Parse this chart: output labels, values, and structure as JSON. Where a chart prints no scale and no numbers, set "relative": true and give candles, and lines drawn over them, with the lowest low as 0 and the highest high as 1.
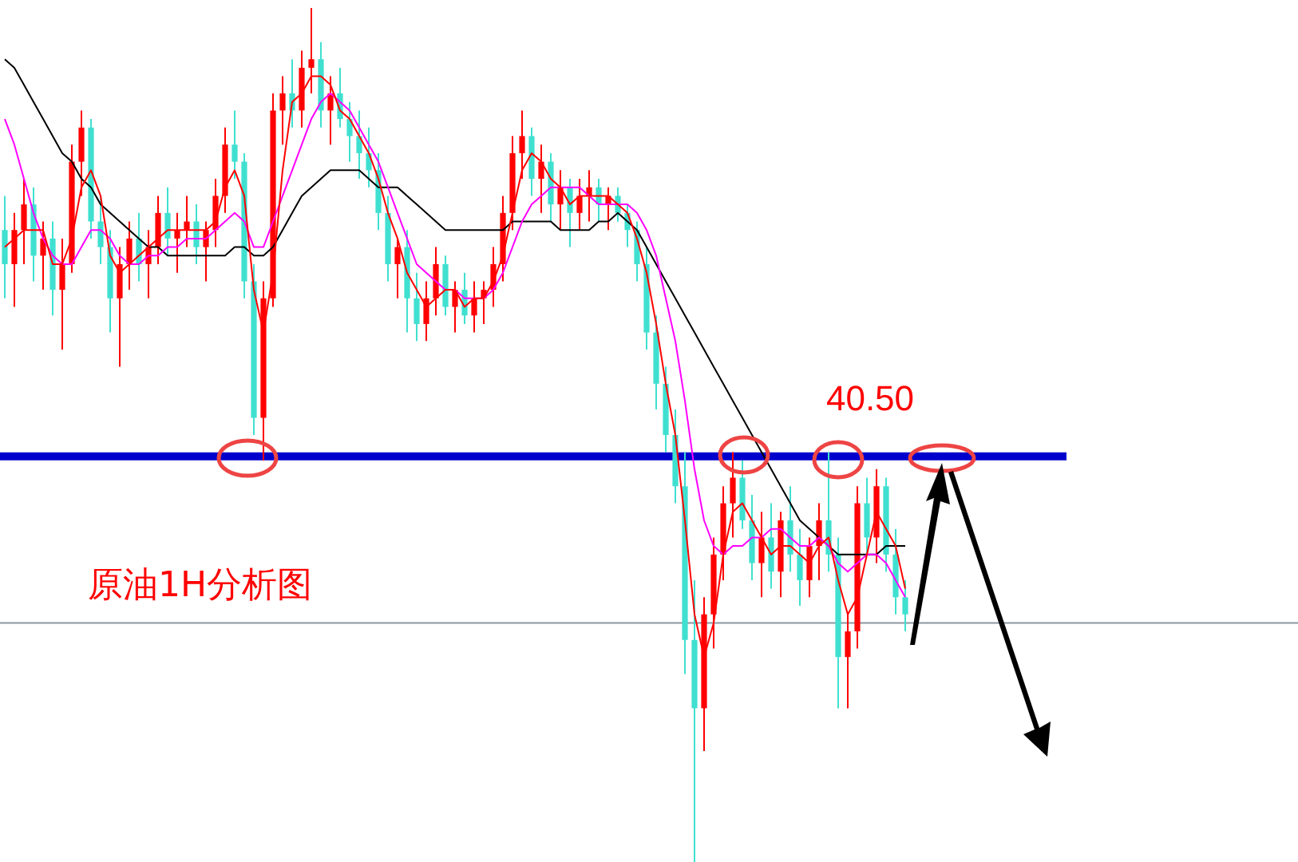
{
  "chart_data": {
    "type": "candlestick",
    "relative": true,
    "legend": false,
    "categories": [
      null,
      null,
      null,
      null,
      null,
      null,
      null,
      null,
      null,
      null,
      null,
      null,
      null,
      null,
      null,
      null,
      null,
      null,
      null,
      null,
      null,
      null,
      null,
      null,
      null,
      null,
      null,
      null,
      null,
      null,
      null,
      null,
      null,
      null,
      null,
      null,
      null,
      null,
      null,
      null,
      null,
      null,
      null,
      null,
      null,
      null,
      null,
      null,
      null,
      null,
      null,
      null,
      null,
      null,
      null,
      null,
      null,
      null,
      null,
      null,
      null,
      null,
      null,
      null,
      null,
      null,
      null,
      null,
      null,
      null,
      null,
      null,
      null,
      null,
      null,
      null,
      null,
      null,
      null,
      null,
      null,
      null,
      null,
      null,
      null,
      null,
      null,
      null,
      null,
      null,
      null,
      null,
      null,
      null,
      null
    ],
    "ohlc": [
      [
        0.74,
        0.78,
        0.66,
        0.7
      ],
      [
        0.7,
        0.76,
        0.65,
        0.74
      ],
      [
        0.74,
        0.8,
        0.7,
        0.77
      ],
      [
        0.77,
        0.79,
        0.68,
        0.71
      ],
      [
        0.71,
        0.75,
        0.67,
        0.73
      ],
      [
        0.73,
        0.75,
        0.64,
        0.67
      ],
      [
        0.67,
        0.73,
        0.6,
        0.7
      ],
      [
        0.7,
        0.84,
        0.69,
        0.82
      ],
      [
        0.82,
        0.88,
        0.78,
        0.86
      ],
      [
        0.86,
        0.87,
        0.73,
        0.75
      ],
      [
        0.75,
        0.78,
        0.7,
        0.72
      ],
      [
        0.72,
        0.74,
        0.62,
        0.66
      ],
      [
        0.66,
        0.72,
        0.58,
        0.7
      ],
      [
        0.7,
        0.75,
        0.67,
        0.73
      ],
      [
        0.73,
        0.76,
        0.68,
        0.7
      ],
      [
        0.7,
        0.74,
        0.66,
        0.72
      ],
      [
        0.72,
        0.78,
        0.7,
        0.76
      ],
      [
        0.76,
        0.79,
        0.71,
        0.73
      ],
      [
        0.73,
        0.76,
        0.69,
        0.74
      ],
      [
        0.74,
        0.78,
        0.72,
        0.75
      ],
      [
        0.75,
        0.77,
        0.7,
        0.72
      ],
      [
        0.72,
        0.75,
        0.68,
        0.74
      ],
      [
        0.74,
        0.8,
        0.72,
        0.78
      ],
      [
        0.78,
        0.86,
        0.76,
        0.84
      ],
      [
        0.84,
        0.88,
        0.8,
        0.82
      ],
      [
        0.82,
        0.83,
        0.66,
        0.68
      ],
      [
        0.68,
        0.7,
        0.5,
        0.52
      ],
      [
        0.52,
        0.68,
        0.47,
        0.66
      ],
      [
        0.66,
        0.9,
        0.65,
        0.88
      ],
      [
        0.88,
        0.92,
        0.84,
        0.9
      ],
      [
        0.9,
        0.94,
        0.86,
        0.88
      ],
      [
        0.88,
        0.95,
        0.86,
        0.93
      ],
      [
        0.93,
        1.0,
        0.9,
        0.94
      ],
      [
        0.94,
        0.96,
        0.86,
        0.88
      ],
      [
        0.88,
        0.92,
        0.84,
        0.9
      ],
      [
        0.9,
        0.93,
        0.86,
        0.87
      ],
      [
        0.87,
        0.89,
        0.82,
        0.85
      ],
      [
        0.85,
        0.88,
        0.8,
        0.83
      ],
      [
        0.83,
        0.86,
        0.79,
        0.81
      ],
      [
        0.81,
        0.83,
        0.74,
        0.76
      ],
      [
        0.76,
        0.78,
        0.68,
        0.7
      ],
      [
        0.7,
        0.73,
        0.66,
        0.72
      ],
      [
        0.72,
        0.74,
        0.62,
        0.66
      ],
      [
        0.66,
        0.69,
        0.61,
        0.63
      ],
      [
        0.63,
        0.68,
        0.61,
        0.66
      ],
      [
        0.66,
        0.72,
        0.64,
        0.7
      ],
      [
        0.7,
        0.71,
        0.64,
        0.65
      ],
      [
        0.65,
        0.68,
        0.62,
        0.67
      ],
      [
        0.67,
        0.69,
        0.63,
        0.64
      ],
      [
        0.64,
        0.68,
        0.62,
        0.66
      ],
      [
        0.66,
        0.68,
        0.63,
        0.67
      ],
      [
        0.67,
        0.72,
        0.65,
        0.7
      ],
      [
        0.7,
        0.78,
        0.68,
        0.76
      ],
      [
        0.76,
        0.85,
        0.74,
        0.83
      ],
      [
        0.83,
        0.88,
        0.8,
        0.85
      ],
      [
        0.85,
        0.86,
        0.78,
        0.8
      ],
      [
        0.8,
        0.84,
        0.76,
        0.82
      ],
      [
        0.82,
        0.83,
        0.75,
        0.77
      ],
      [
        0.77,
        0.81,
        0.74,
        0.79
      ],
      [
        0.79,
        0.8,
        0.72,
        0.76
      ],
      [
        0.76,
        0.8,
        0.74,
        0.78
      ],
      [
        0.78,
        0.81,
        0.75,
        0.79
      ],
      [
        0.79,
        0.8,
        0.75,
        0.77
      ],
      [
        0.77,
        0.79,
        0.74,
        0.78
      ],
      [
        0.78,
        0.79,
        0.75,
        0.76
      ],
      [
        0.76,
        0.77,
        0.72,
        0.74
      ],
      [
        0.74,
        0.75,
        0.68,
        0.7
      ],
      [
        0.7,
        0.72,
        0.6,
        0.62
      ],
      [
        0.62,
        0.64,
        0.53,
        0.56
      ],
      [
        0.56,
        0.58,
        0.48,
        0.5
      ],
      [
        0.5,
        0.53,
        0.42,
        0.44
      ],
      [
        0.44,
        0.48,
        0.22,
        0.26
      ],
      [
        0.26,
        0.33,
        0.0,
        0.18
      ],
      [
        0.18,
        0.31,
        0.13,
        0.29
      ],
      [
        0.29,
        0.38,
        0.25,
        0.36
      ],
      [
        0.36,
        0.44,
        0.33,
        0.42
      ],
      [
        0.42,
        0.48,
        0.38,
        0.45
      ],
      [
        0.45,
        0.47,
        0.39,
        0.4
      ],
      [
        0.4,
        0.43,
        0.33,
        0.35
      ],
      [
        0.35,
        0.41,
        0.31,
        0.38
      ],
      [
        0.38,
        0.42,
        0.32,
        0.34
      ],
      [
        0.34,
        0.41,
        0.31,
        0.4
      ],
      [
        0.4,
        0.44,
        0.34,
        0.36
      ],
      [
        0.36,
        0.39,
        0.3,
        0.33
      ],
      [
        0.33,
        0.38,
        0.31,
        0.37
      ],
      [
        0.37,
        0.42,
        0.33,
        0.4
      ],
      [
        0.4,
        0.48,
        0.34,
        0.36
      ],
      [
        0.36,
        0.38,
        0.18,
        0.24
      ],
      [
        0.24,
        0.29,
        0.18,
        0.27
      ],
      [
        0.27,
        0.44,
        0.25,
        0.42
      ],
      [
        0.42,
        0.45,
        0.36,
        0.38
      ],
      [
        0.38,
        0.46,
        0.35,
        0.44
      ],
      [
        0.44,
        0.45,
        0.34,
        0.36
      ],
      [
        0.36,
        0.39,
        0.29,
        0.31
      ],
      [
        0.31,
        0.33,
        0.27,
        0.29
      ]
    ],
    "colors": [
      "#40e0d0",
      "#ff0000",
      "#ff0000",
      "#40e0d0",
      "#ff0000",
      "#40e0d0",
      "#ff0000",
      "#ff0000",
      "#ff0000",
      "#40e0d0",
      "#40e0d0",
      "#40e0d0",
      "#ff0000",
      "#ff0000",
      "#40e0d0",
      "#ff0000",
      "#ff0000",
      "#40e0d0",
      "#ff0000",
      "#ff0000",
      "#40e0d0",
      "#ff0000",
      "#ff0000",
      "#ff0000",
      "#40e0d0",
      "#40e0d0",
      "#40e0d0",
      "#ff0000",
      "#ff0000",
      "#ff0000",
      "#40e0d0",
      "#ff0000",
      "#ff0000",
      "#40e0d0",
      "#ff0000",
      "#40e0d0",
      "#40e0d0",
      "#40e0d0",
      "#40e0d0",
      "#40e0d0",
      "#40e0d0",
      "#ff0000",
      "#40e0d0",
      "#40e0d0",
      "#ff0000",
      "#ff0000",
      "#40e0d0",
      "#ff0000",
      "#40e0d0",
      "#ff0000",
      "#ff0000",
      "#ff0000",
      "#ff0000",
      "#ff0000",
      "#ff0000",
      "#40e0d0",
      "#ff0000",
      "#40e0d0",
      "#ff0000",
      "#40e0d0",
      "#ff0000",
      "#ff0000",
      "#40e0d0",
      "#ff0000",
      "#40e0d0",
      "#40e0d0",
      "#40e0d0",
      "#40e0d0",
      "#40e0d0",
      "#40e0d0",
      "#40e0d0",
      "#40e0d0",
      "#40e0d0",
      "#ff0000",
      "#ff0000",
      "#ff0000",
      "#ff0000",
      "#40e0d0",
      "#40e0d0",
      "#ff0000",
      "#40e0d0",
      "#ff0000",
      "#40e0d0",
      "#40e0d0",
      "#ff0000",
      "#ff0000",
      "#40e0d0",
      "#40e0d0",
      "#ff0000",
      "#ff0000",
      "#40e0d0",
      "#ff0000",
      "#40e0d0",
      "#40e0d0",
      "#40e0d0"
    ],
    "series": [
      {
        "type": "line",
        "color": "#ff0000",
        "values": [
          0.72,
          0.73,
          0.74,
          0.74,
          0.74,
          0.7,
          0.7,
          0.73,
          0.79,
          0.81,
          0.78,
          0.71,
          0.69,
          0.7,
          0.71,
          0.72,
          0.73,
          0.74,
          0.74,
          0.74,
          0.74,
          0.74,
          0.75,
          0.79,
          0.81,
          0.78,
          0.67,
          0.62,
          0.69,
          0.81,
          0.89,
          0.9,
          0.92,
          0.92,
          0.91,
          0.88,
          0.87,
          0.85,
          0.83,
          0.8,
          0.76,
          0.73,
          0.69,
          0.67,
          0.65,
          0.66,
          0.67,
          0.67,
          0.65,
          0.66,
          0.66,
          0.68,
          0.71,
          0.76,
          0.81,
          0.83,
          0.82,
          0.8,
          0.79,
          0.77,
          0.78,
          0.78,
          0.78,
          0.78,
          0.77,
          0.76,
          0.73,
          0.69,
          0.63,
          0.56,
          0.5,
          0.4,
          0.29,
          0.24,
          0.28,
          0.36,
          0.41,
          0.42,
          0.4,
          0.38,
          0.36,
          0.37,
          0.37,
          0.36,
          0.35,
          0.37,
          0.38,
          0.33,
          0.29,
          0.31,
          0.36,
          0.41,
          0.39,
          0.37,
          0.32
        ]
      },
      {
        "type": "line",
        "color": "#ff00ff",
        "values": [
          0.87,
          0.84,
          0.8,
          0.76,
          0.73,
          0.71,
          0.7,
          0.7,
          0.72,
          0.74,
          0.74,
          0.73,
          0.71,
          0.7,
          0.7,
          0.71,
          0.71,
          0.72,
          0.72,
          0.73,
          0.73,
          0.73,
          0.74,
          0.75,
          0.76,
          0.75,
          0.72,
          0.72,
          0.75,
          0.78,
          0.81,
          0.84,
          0.87,
          0.89,
          0.9,
          0.89,
          0.88,
          0.86,
          0.84,
          0.82,
          0.79,
          0.76,
          0.73,
          0.7,
          0.69,
          0.68,
          0.67,
          0.67,
          0.66,
          0.66,
          0.66,
          0.67,
          0.69,
          0.72,
          0.75,
          0.77,
          0.78,
          0.79,
          0.79,
          0.79,
          0.79,
          0.78,
          0.77,
          0.77,
          0.77,
          0.77,
          0.76,
          0.74,
          0.71,
          0.66,
          0.61,
          0.54,
          0.46,
          0.4,
          0.37,
          0.36,
          0.37,
          0.37,
          0.38,
          0.38,
          0.39,
          0.39,
          0.38,
          0.37,
          0.37,
          0.38,
          0.37,
          0.35,
          0.34,
          0.35,
          0.36,
          0.36,
          0.35,
          0.33,
          0.31
        ]
      },
      {
        "type": "line",
        "color": "#000000",
        "values": [
          0.94,
          0.93,
          0.91,
          0.89,
          0.87,
          0.85,
          0.83,
          0.82,
          0.8,
          0.79,
          0.77,
          0.76,
          0.75,
          0.74,
          0.73,
          0.72,
          0.72,
          0.71,
          0.71,
          0.71,
          0.71,
          0.71,
          0.71,
          0.71,
          0.72,
          0.72,
          0.71,
          0.71,
          0.72,
          0.74,
          0.76,
          0.78,
          0.79,
          0.8,
          0.81,
          0.81,
          0.81,
          0.81,
          0.8,
          0.79,
          0.79,
          0.79,
          0.78,
          0.77,
          0.76,
          0.75,
          0.74,
          0.74,
          0.74,
          0.74,
          0.74,
          0.74,
          0.74,
          0.75,
          0.75,
          0.75,
          0.75,
          0.75,
          0.74,
          0.74,
          0.74,
          0.74,
          0.75,
          0.75,
          0.76,
          0.75,
          0.74,
          0.72,
          0.7,
          0.68,
          0.66,
          0.64,
          0.62,
          0.6,
          0.58,
          0.56,
          0.54,
          0.52,
          0.5,
          0.48,
          0.46,
          0.44,
          0.42,
          0.4,
          0.39,
          0.38,
          0.37,
          0.36,
          0.36,
          0.36,
          0.36,
          0.36,
          0.37,
          0.37,
          0.37
        ]
      }
    ],
    "ref_lines": [
      {
        "axis": "y",
        "value": 0.475,
        "color": "#0000cc"
      },
      {
        "axis": "y",
        "value": 0.28,
        "color": "#8c96a0"
      }
    ],
    "annotations": [
      "40.50",
      "原油1H分析图"
    ]
  }
}
